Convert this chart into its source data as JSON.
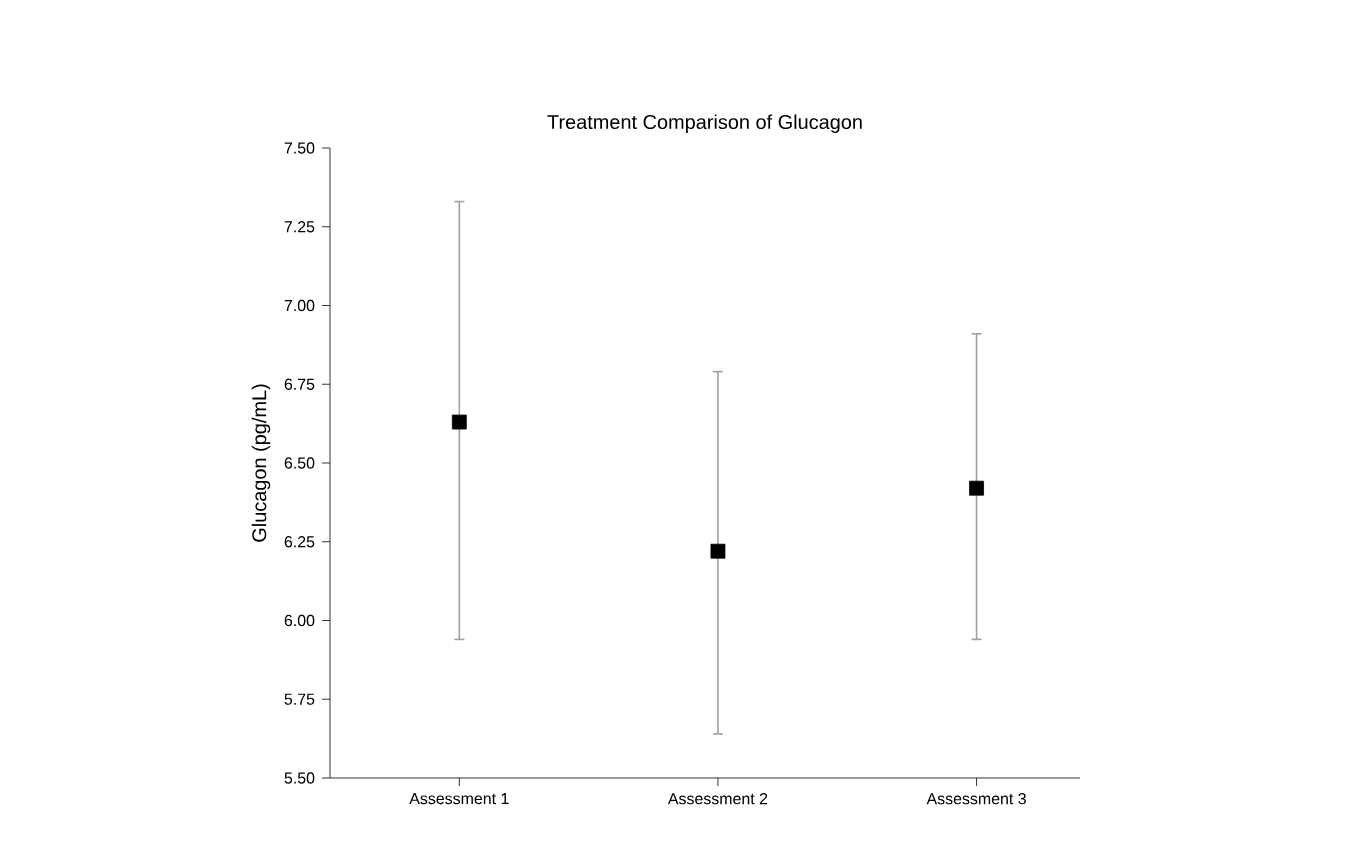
{
  "chart_data": {
    "type": "scatter",
    "title": "Treatment Comparison of Glucagon",
    "ylabel": "Glucagon (pg/mL)",
    "categories": [
      "Assessment 1",
      "Assessment 2",
      "Assessment 3"
    ],
    "values": [
      6.63,
      6.22,
      6.42
    ],
    "errors": [
      [
        5.94,
        7.33
      ],
      [
        5.64,
        6.79
      ],
      [
        5.94,
        6.91
      ]
    ],
    "color": "#000000",
    "marker": "square",
    "ylim": [
      5.5,
      7.5
    ],
    "yticks": [
      {
        "value": 5.5,
        "label": "5.50"
      },
      {
        "value": 5.75,
        "label": "5.75"
      },
      {
        "value": 6.0,
        "label": "6.00"
      },
      {
        "value": 6.25,
        "label": "6.25"
      },
      {
        "value": 6.5,
        "label": "6.50"
      },
      {
        "value": 6.75,
        "label": "6.75"
      },
      {
        "value": 7.0,
        "label": "7.00"
      },
      {
        "value": 7.25,
        "label": "7.25"
      },
      {
        "value": 7.5,
        "label": "7.50"
      }
    ]
  }
}
